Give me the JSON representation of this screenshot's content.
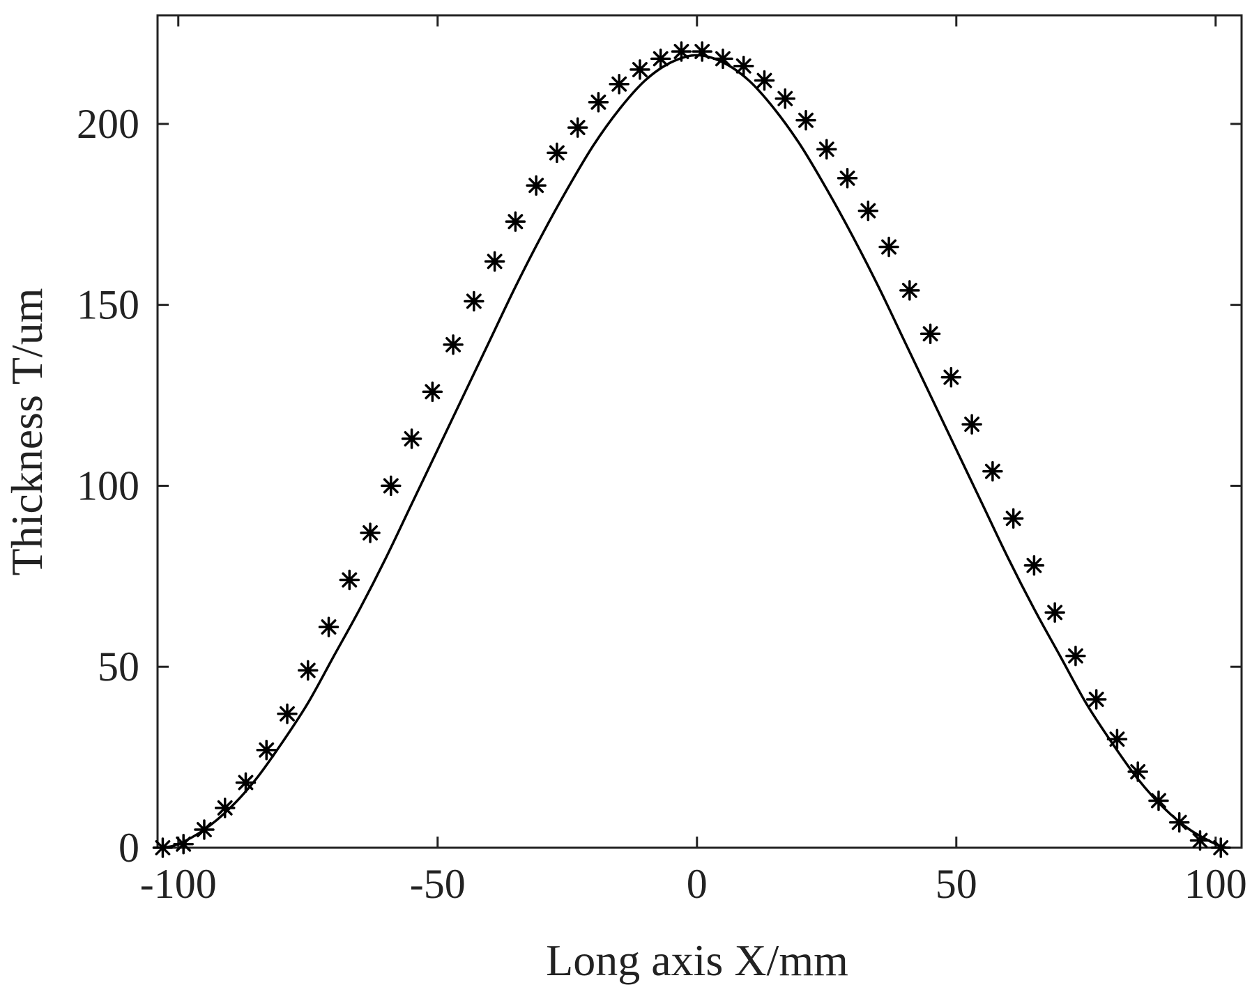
{
  "chart_data": {
    "type": "line",
    "title": "",
    "xlabel": "Long axis  X/mm",
    "ylabel": "Thickness  T/um",
    "xlim": [
      -104,
      105
    ],
    "ylim": [
      0,
      230
    ],
    "xticks": [
      -100,
      -50,
      0,
      50,
      100
    ],
    "yticks": [
      0,
      50,
      100,
      150,
      200
    ],
    "xtick_labels": [
      "-100",
      "-50",
      "0",
      "50",
      "100"
    ],
    "ytick_labels": [
      "0",
      "50",
      "100",
      "150",
      "200"
    ],
    "grid": false,
    "legend": "none",
    "series": [
      {
        "style": "solid-line",
        "color": "#000000",
        "x": [
          -103,
          -100,
          -95,
          -90,
          -85,
          -80,
          -75,
          -70,
          -65,
          -60,
          -55,
          -50,
          -45,
          -40,
          -35,
          -30,
          -25,
          -20,
          -15,
          -10,
          -5,
          0,
          5,
          10,
          15,
          20,
          25,
          30,
          35,
          40,
          45,
          50,
          55,
          60,
          65,
          70,
          75,
          80,
          85,
          90,
          95,
          100,
          102
        ],
        "y": [
          0,
          1,
          5,
          11,
          19,
          29,
          40,
          53,
          66,
          80,
          95,
          110,
          125,
          140,
          155,
          169,
          182,
          194,
          204,
          212,
          217,
          219,
          217,
          212,
          204,
          194,
          182,
          169,
          155,
          140,
          125,
          110,
          95,
          80,
          66,
          53,
          40,
          29,
          19,
          11,
          5,
          1,
          0
        ]
      },
      {
        "style": "asterisk-markers",
        "color": "#000000",
        "x": [
          -103,
          -99,
          -95,
          -91,
          -87,
          -83,
          -79,
          -75,
          -71,
          -67,
          -63,
          -59,
          -55,
          -51,
          -47,
          -43,
          -39,
          -35,
          -31,
          -27,
          -23,
          -19,
          -15,
          -11,
          -7,
          -3,
          1,
          5,
          9,
          13,
          17,
          21,
          25,
          29,
          33,
          37,
          41,
          45,
          49,
          53,
          57,
          61,
          65,
          69,
          73,
          77,
          81,
          85,
          89,
          93,
          97,
          101
        ],
        "y": [
          0,
          1,
          5,
          11,
          18,
          27,
          37,
          49,
          61,
          74,
          87,
          100,
          113,
          126,
          139,
          151,
          162,
          173,
          183,
          192,
          199,
          206,
          211,
          215,
          218,
          220,
          220,
          218,
          216,
          212,
          207,
          201,
          193,
          185,
          176,
          166,
          154,
          142,
          130,
          117,
          104,
          91,
          78,
          65,
          53,
          41,
          30,
          21,
          13,
          7,
          2,
          0
        ]
      }
    ]
  }
}
